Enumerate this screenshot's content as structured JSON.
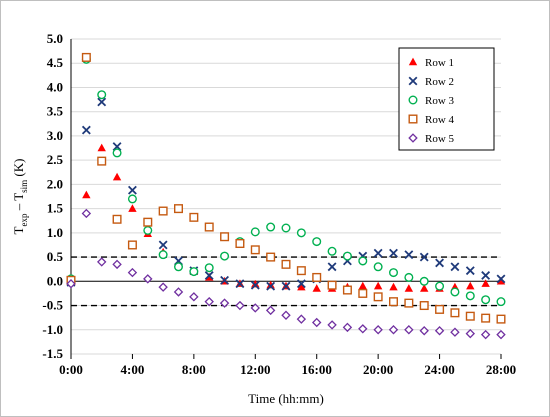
{
  "chart_data": {
    "type": "scatter",
    "xlabel": "Time (hh:mm)",
    "ylabel": {
      "base": "T",
      "sub1": "exp",
      "mid": " – T",
      "sub2": "sim",
      "tail": " (K)"
    },
    "xlim": [
      0,
      28
    ],
    "ylim": [
      -1.5,
      5.0
    ],
    "x_ticks": [
      {
        "value": 0,
        "label": "0:00"
      },
      {
        "value": 4,
        "label": "4:00"
      },
      {
        "value": 8,
        "label": "8:00"
      },
      {
        "value": 12,
        "label": "12:00"
      },
      {
        "value": 16,
        "label": "16:00"
      },
      {
        "value": 20,
        "label": "20:00"
      },
      {
        "value": 24,
        "label": "24:00"
      },
      {
        "value": 28,
        "label": "28:00"
      }
    ],
    "y_ticks": [
      {
        "value": -1.5,
        "label": "-1.5"
      },
      {
        "value": -1.0,
        "label": "-1.0"
      },
      {
        "value": -0.5,
        "label": "-0.5"
      },
      {
        "value": 0.0,
        "label": "0.0"
      },
      {
        "value": 0.5,
        "label": "0.5"
      },
      {
        "value": 1.0,
        "label": "1.0"
      },
      {
        "value": 1.5,
        "label": "1.5"
      },
      {
        "value": 2.0,
        "label": "2.0"
      },
      {
        "value": 2.5,
        "label": "2.5"
      },
      {
        "value": 3.0,
        "label": "3.0"
      },
      {
        "value": 3.5,
        "label": "3.5"
      },
      {
        "value": 4.0,
        "label": "4.0"
      },
      {
        "value": 4.5,
        "label": "4.5"
      },
      {
        "value": 5.0,
        "label": "5.0"
      }
    ],
    "grid": "horizontal",
    "reference_lines": [
      0.5,
      -0.5
    ],
    "legend_position": "top-right",
    "x": [
      0,
      1,
      2,
      3,
      4,
      5,
      6,
      7,
      8,
      9,
      10,
      11,
      12,
      13,
      14,
      15,
      16,
      17,
      18,
      19,
      20,
      21,
      22,
      23,
      24,
      25,
      26,
      27,
      28
    ],
    "series": [
      {
        "name": "Row 1",
        "marker": "triangle",
        "color": "#ff0000",
        "values": [
          0.0,
          1.78,
          2.75,
          2.15,
          1.5,
          0.98,
          0.6,
          0.35,
          0.2,
          0.08,
          0.0,
          -0.05,
          -0.06,
          -0.08,
          -0.1,
          -0.12,
          -0.15,
          -0.15,
          -0.12,
          -0.1,
          -0.1,
          -0.12,
          -0.15,
          -0.15,
          -0.15,
          -0.12,
          -0.1,
          -0.05,
          0.0
        ]
      },
      {
        "name": "Row 2",
        "marker": "x",
        "color": "#1f3a7a",
        "values": [
          -0.02,
          3.12,
          3.7,
          2.78,
          1.88,
          1.22,
          0.75,
          0.42,
          0.22,
          0.12,
          0.02,
          -0.05,
          -0.08,
          -0.1,
          -0.1,
          -0.05,
          0.05,
          0.3,
          0.42,
          0.52,
          0.58,
          0.58,
          0.55,
          0.5,
          0.38,
          0.3,
          0.22,
          0.12,
          0.05
        ]
      },
      {
        "name": "Row 3",
        "marker": "circle",
        "color": "#00b050",
        "values": [
          0.05,
          4.58,
          3.85,
          2.65,
          1.7,
          1.05,
          0.55,
          0.3,
          0.2,
          0.28,
          0.52,
          0.82,
          1.02,
          1.12,
          1.1,
          1.0,
          0.82,
          0.62,
          0.52,
          0.42,
          0.3,
          0.18,
          0.08,
          0.0,
          -0.1,
          -0.22,
          -0.3,
          -0.38,
          -0.42
        ]
      },
      {
        "name": "Row 4",
        "marker": "square",
        "color": "#c55a11",
        "values": [
          0.02,
          4.62,
          2.48,
          1.28,
          0.75,
          1.22,
          1.45,
          1.5,
          1.32,
          1.12,
          0.92,
          0.78,
          0.65,
          0.5,
          0.35,
          0.22,
          0.08,
          -0.08,
          -0.18,
          -0.25,
          -0.32,
          -0.42,
          -0.45,
          -0.5,
          -0.58,
          -0.65,
          -0.72,
          -0.76,
          -0.78
        ]
      },
      {
        "name": "Row 5",
        "marker": "diamond",
        "color": "#7030a0",
        "values": [
          -0.05,
          1.4,
          0.4,
          0.35,
          0.18,
          0.05,
          -0.12,
          -0.22,
          -0.32,
          -0.42,
          -0.45,
          -0.5,
          -0.55,
          -0.6,
          -0.7,
          -0.78,
          -0.85,
          -0.9,
          -0.95,
          -0.98,
          -1.0,
          -1.0,
          -1.0,
          -1.02,
          -1.02,
          -1.05,
          -1.08,
          -1.1,
          -1.1
        ]
      }
    ]
  }
}
